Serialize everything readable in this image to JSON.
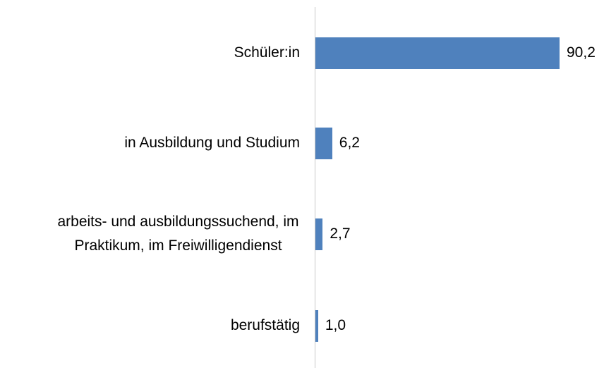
{
  "chart_data": {
    "type": "bar",
    "orientation": "horizontal",
    "categories": [
      "Schüler:in",
      "in Ausbildung und Studium",
      "arbeits- und ausbildungssuchend, im Praktikum, im Freiwilligendienst",
      "berufstätig"
    ],
    "values": [
      90.2,
      6.2,
      2.7,
      1.0
    ],
    "value_labels": [
      "90,2",
      "6,2",
      "2,7",
      "1,0"
    ],
    "color": "#4f81bd"
  }
}
